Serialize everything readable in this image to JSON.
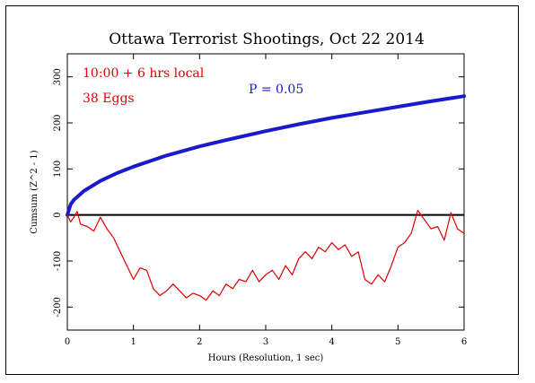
{
  "chart_data": {
    "type": "line",
    "title": "Ottawa Terrorist Shootings, Oct 22 2014",
    "xlabel": "Hours (Resolution, 1 sec)",
    "ylabel": "Cumsum (Z^2 - 1)",
    "xlim": [
      0,
      6
    ],
    "ylim": [
      -250,
      350
    ],
    "xticks": [
      "0",
      "1",
      "2",
      "3",
      "4",
      "5",
      "6"
    ],
    "yticks": [
      "-200",
      "-100",
      "0",
      "100",
      "200",
      "300"
    ],
    "grid": false,
    "annotations": {
      "time": "10:00 + 6 hrs local",
      "eggs": "38 Eggs",
      "probability": "P = 0.05"
    },
    "colors": {
      "cumsum": "#e00000",
      "probability": "#1a1acc",
      "axis": "#000000"
    },
    "series": [
      {
        "name": "P = 0.05",
        "color": "#1a1acc",
        "x": [
          0,
          0.05,
          0.1,
          0.25,
          0.5,
          0.75,
          1,
          1.5,
          2,
          2.5,
          3,
          3.5,
          4,
          4.5,
          5,
          5.5,
          6
        ],
        "y": [
          0,
          23,
          33,
          52,
          74,
          91,
          105,
          129,
          149,
          166,
          182,
          197,
          211,
          223,
          235,
          247,
          258
        ]
      },
      {
        "color": "#e00000",
        "x": [
          0,
          0.05,
          0.1,
          0.15,
          0.2,
          0.3,
          0.4,
          0.5,
          0.6,
          0.7,
          0.8,
          0.9,
          1.0,
          1.1,
          1.2,
          1.3,
          1.4,
          1.5,
          1.6,
          1.7,
          1.8,
          1.9,
          2.0,
          2.1,
          2.2,
          2.3,
          2.4,
          2.5,
          2.6,
          2.7,
          2.8,
          2.9,
          3.0,
          3.1,
          3.2,
          3.3,
          3.4,
          3.5,
          3.6,
          3.7,
          3.8,
          3.9,
          4.0,
          4.1,
          4.2,
          4.3,
          4.4,
          4.5,
          4.6,
          4.7,
          4.8,
          4.9,
          5.0,
          5.1,
          5.2,
          5.3,
          5.4,
          5.5,
          5.6,
          5.7,
          5.8,
          5.9,
          6.0
        ],
        "y": [
          0,
          -15,
          -5,
          8,
          -20,
          -25,
          -35,
          -5,
          -30,
          -50,
          -80,
          -110,
          -140,
          -115,
          -120,
          -160,
          -175,
          -165,
          -150,
          -165,
          -180,
          -170,
          -175,
          -185,
          -165,
          -175,
          -150,
          -160,
          -140,
          -145,
          -120,
          -145,
          -130,
          -120,
          -140,
          -110,
          -130,
          -95,
          -80,
          -95,
          -70,
          -80,
          -60,
          -75,
          -65,
          -90,
          -80,
          -140,
          -150,
          -130,
          -145,
          -110,
          -70,
          -60,
          -40,
          10,
          -10,
          -30,
          -25,
          -55,
          5,
          -30,
          -40
        ]
      }
    ]
  }
}
